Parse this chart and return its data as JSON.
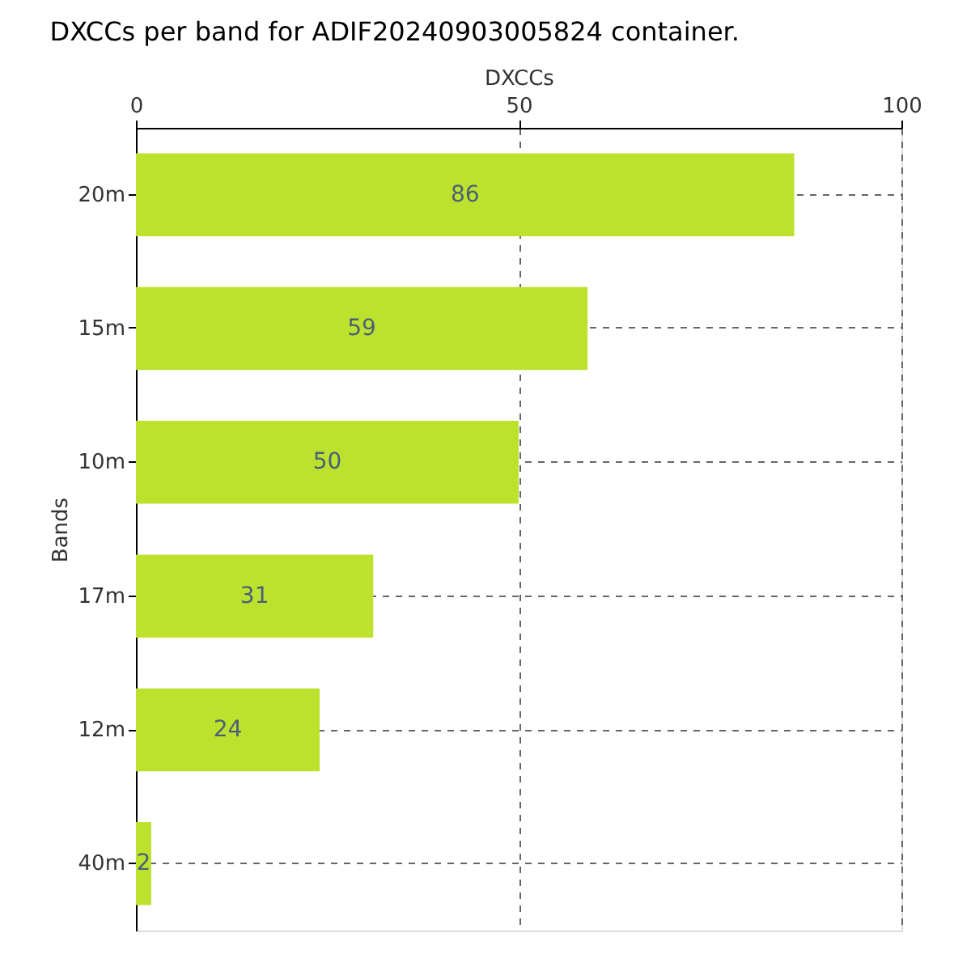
{
  "chart_data": {
    "type": "bar",
    "orientation": "horizontal",
    "title": "DXCCs per band for ADIF20240903005824 container.",
    "xlabel": "DXCCs",
    "ylabel": "Bands",
    "categories": [
      "20m",
      "15m",
      "10m",
      "17m",
      "12m",
      "40m"
    ],
    "series": [
      {
        "color": "#bde22e",
        "values": [
          86,
          59,
          50,
          31,
          24,
          2
        ]
      }
    ],
    "xlim": [
      0,
      100
    ],
    "xticks": [
      0,
      50,
      100
    ],
    "grid": true,
    "data_labels": true
  }
}
